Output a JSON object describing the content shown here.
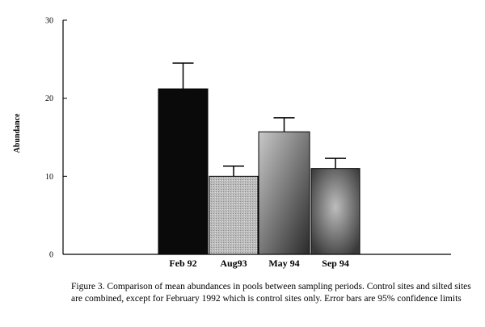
{
  "chart_data": {
    "type": "bar",
    "categories": [
      "Feb 92",
      "Aug93",
      "May 94",
      "Sep 94"
    ],
    "values": [
      21.2,
      10,
      15.7,
      11
    ],
    "error_upper": [
      24.5,
      11.3,
      17.5,
      12.3
    ],
    "ylabel": "Abundance",
    "xlabel": "",
    "ylim": [
      0,
      30
    ],
    "yticks": [
      0,
      10,
      20,
      30
    ],
    "grid": false,
    "bar_colors": [
      "#0a0a0a",
      "#b4b4b4",
      "#7a7a7a",
      "#7e7e7e"
    ]
  },
  "caption": "Figure 3.  Comparison of mean abundances in pools between sampling periods. Control sites and silted sites are combined, except for February 1992 which is control sites only. Error bars are 95% confidence limits"
}
